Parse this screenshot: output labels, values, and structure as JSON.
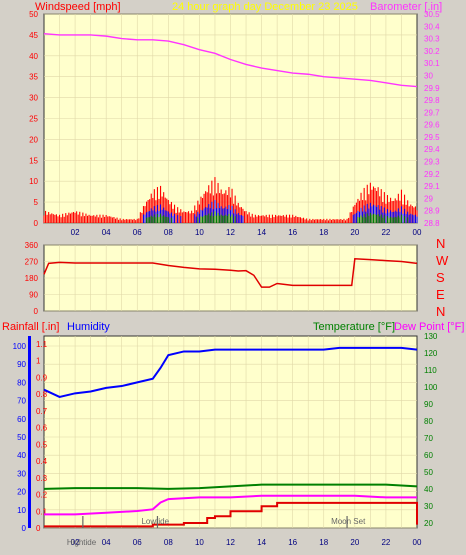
{
  "header": {
    "left_label": "Windspeed [mph]",
    "center_label": "24 hour graph day   December 23 2025",
    "right_label": "Barometer [.in]"
  },
  "colors": {
    "background": "#d4d0c8",
    "plot_bg": "#ffffcc",
    "wind": "#ff0000",
    "wind_gust": "#0000ff",
    "wind_low": "#008000",
    "barometer": "#ff33ff",
    "direction": "#e00000",
    "humidity": "#0000ff",
    "temperature": "#008000",
    "dew_point": "#ff00ff",
    "rainfall": "#e00000"
  },
  "chart_data": [
    {
      "type": "line",
      "panel": "wind-barometer",
      "x_tick_labels": [
        "02",
        "04",
        "06",
        "08",
        "10",
        "12",
        "14",
        "16",
        "18",
        "20",
        "22",
        "00"
      ],
      "left_axis": {
        "label": "Windspeed [mph]",
        "ticks": [
          0,
          5,
          10,
          15,
          20,
          25,
          30,
          35,
          40,
          45,
          50
        ],
        "ylim": [
          0,
          50
        ]
      },
      "right_axis": {
        "label": "Barometer [.in]",
        "ticks": [
          "28.8",
          "28.9",
          "29",
          "29.1",
          "29.2",
          "29.3",
          "29.4",
          "29.5",
          "29.6",
          "29.7",
          "29.8",
          "29.9",
          "30",
          "30.1",
          "30.2",
          "30.3",
          "30.4",
          "30.5"
        ],
        "ylim": [
          28.8,
          30.5
        ]
      },
      "series": [
        {
          "name": "Barometer",
          "axis": "right",
          "x": [
            0,
            1,
            2,
            3,
            4,
            5,
            6,
            7,
            8,
            9,
            10,
            11,
            12,
            13,
            14,
            15,
            16,
            17,
            18,
            19,
            20,
            21,
            22,
            23,
            24
          ],
          "values": [
            30.34,
            30.33,
            30.33,
            30.33,
            30.32,
            30.3,
            30.29,
            30.29,
            30.28,
            30.25,
            30.21,
            30.18,
            30.13,
            30.09,
            30.06,
            30.04,
            30.02,
            30.01,
            29.99,
            29.98,
            29.97,
            29.96,
            29.94,
            29.92,
            29.91
          ]
        },
        {
          "name": "Windspeed",
          "axis": "left",
          "x": [
            0,
            1,
            2,
            3,
            4,
            5,
            6,
            6.5,
            7,
            7.5,
            8,
            8.5,
            9,
            9.5,
            10,
            10.5,
            11,
            11.5,
            12,
            12.5,
            13,
            13.5,
            14,
            15,
            16,
            17,
            18,
            19,
            19.5,
            20,
            20.5,
            21,
            21.5,
            22,
            22.5,
            23,
            23.5,
            24
          ],
          "values": [
            3,
            2,
            3,
            2,
            2,
            1,
            1,
            5,
            8,
            9,
            6,
            4,
            3,
            3,
            6,
            9,
            11,
            8,
            9,
            5,
            3,
            2,
            2,
            2,
            2,
            1,
            1,
            1,
            1,
            5,
            8,
            10,
            9,
            7,
            6,
            8,
            5,
            4
          ]
        }
      ]
    },
    {
      "type": "line",
      "panel": "wind-direction",
      "left_axis": {
        "ticks": [
          0,
          90,
          180,
          270,
          360
        ],
        "ylim": [
          0,
          360
        ]
      },
      "right_axis": {
        "labels": [
          "N",
          "W",
          "S",
          "E",
          "N"
        ]
      },
      "series": [
        {
          "name": "Direction",
          "x": [
            0,
            0.3,
            1,
            2,
            3,
            4,
            5,
            6,
            7,
            8,
            9,
            10,
            11,
            12,
            12.5,
            13,
            13.5,
            14,
            14.5,
            15,
            16,
            17,
            18,
            19,
            19.8,
            20,
            21,
            22,
            23,
            24
          ],
          "values": [
            200,
            260,
            265,
            262,
            262,
            262,
            262,
            262,
            262,
            248,
            238,
            230,
            228,
            222,
            218,
            220,
            195,
            130,
            130,
            150,
            140,
            140,
            140,
            140,
            140,
            285,
            280,
            275,
            270,
            260
          ]
        }
      ]
    },
    {
      "type": "line",
      "panel": "rain-humidity-temperature",
      "header": {
        "rain_label": "Rainfall [.in]",
        "humidity_label": "Humidity",
        "temperature_label": "Temperature [°F]",
        "dew_point_label": "Dew Point [°F]"
      },
      "left_axis": {
        "ticks": [
          0,
          10,
          20,
          30,
          40,
          50,
          60,
          70,
          80,
          90,
          100
        ],
        "ylim": [
          0,
          100
        ]
      },
      "rain_axis": {
        "ticks": [
          "0",
          "0.1",
          "0.2",
          "0.3",
          "0.4",
          "0.5",
          "0.6",
          "0.7",
          "0.8",
          "0.9",
          "1",
          "1.1"
        ],
        "ylim": [
          0,
          1.1
        ]
      },
      "right_axis": {
        "ticks": [
          20,
          30,
          40,
          50,
          60,
          70,
          80,
          90,
          100,
          110,
          120,
          130
        ],
        "ylim": [
          17,
          130
        ]
      },
      "x_tick_labels": [
        "02",
        "04",
        "06",
        "08",
        "10",
        "12",
        "14",
        "16",
        "18",
        "20",
        "22",
        "00"
      ],
      "annotations": [
        {
          "text": "Lowtide",
          "x": 7.3
        },
        {
          "text": "Moon Set",
          "x": 19.5
        },
        {
          "text": "Hightide",
          "x": 2.5
        }
      ],
      "series": [
        {
          "name": "Humidity",
          "x": [
            0,
            1,
            2,
            3,
            4,
            5,
            6,
            7,
            7.5,
            8,
            9,
            10,
            11,
            12,
            13,
            14,
            15,
            16,
            17,
            18,
            19,
            20,
            21,
            22,
            23,
            24
          ],
          "values": [
            76,
            72,
            74,
            75,
            77,
            78,
            80,
            82,
            88,
            95,
            97,
            97,
            98,
            98,
            98,
            98,
            98,
            98,
            98,
            98,
            99,
            99,
            99,
            99,
            99,
            98
          ],
          "rain_scale_note": ""
        },
        {
          "name": "Temperature",
          "x": [
            0,
            2,
            4,
            6,
            8,
            10,
            12,
            14,
            16,
            18,
            20,
            22,
            24
          ],
          "values": [
            40,
            40.5,
            40.5,
            40.5,
            40,
            40.5,
            41.5,
            42.5,
            42.5,
            42.5,
            42.5,
            42.5,
            41.5
          ]
        },
        {
          "name": "Dew Point",
          "x": [
            0,
            2,
            4,
            6,
            7,
            7.5,
            8,
            10,
            12,
            14,
            16,
            18,
            20,
            22,
            24
          ],
          "values": [
            25,
            25,
            26,
            27,
            28,
            32,
            34,
            35,
            35,
            36,
            36,
            36,
            36,
            35,
            35
          ]
        },
        {
          "name": "Rainfall",
          "x": [
            0,
            6,
            7,
            8,
            9,
            10,
            10.5,
            11,
            12,
            14,
            15,
            16,
            17,
            18,
            19,
            20,
            21,
            22,
            23,
            23.8,
            24
          ],
          "values": [
            0.01,
            0.01,
            0.02,
            0.02,
            0.03,
            0.03,
            0.06,
            0.07,
            0.1,
            0.13,
            0.15,
            0.15,
            0.15,
            0.15,
            0.15,
            0.15,
            0.15,
            0.15,
            0.15,
            0.15,
            0.02
          ]
        }
      ]
    }
  ]
}
